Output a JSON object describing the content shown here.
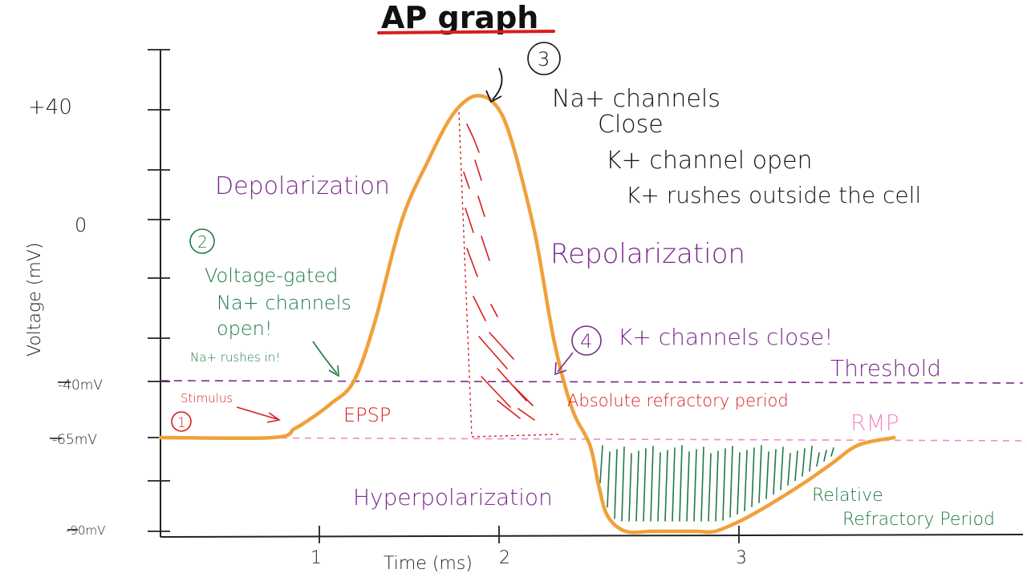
{
  "chart_data": {
    "type": "line",
    "title": "AP graph",
    "xlabel": "Time (ms)",
    "ylabel": "Voltage (mV)",
    "x_tick_labels": [
      "1",
      "2",
      "3"
    ],
    "y_tick_labels": [
      "+40",
      "0",
      "-40mV",
      "-65mV",
      "-90mV"
    ],
    "y_tick_values": [
      40,
      0,
      -40,
      -65,
      -90
    ],
    "threshold": {
      "label": "Threshold",
      "value": -40
    },
    "rmp": {
      "label": "RMP",
      "value": -65
    },
    "series": [
      {
        "x": [
          0.0,
          0.63,
          0.75,
          0.85,
          0.95,
          1.08,
          1.2,
          1.35,
          1.5,
          1.62,
          1.72,
          1.8,
          1.87,
          1.93,
          2.0,
          2.1,
          2.2,
          2.3,
          2.4,
          2.45,
          2.5,
          2.6,
          2.75,
          2.9,
          3.0,
          3.1,
          3.25,
          3.4,
          3.6,
          3.75,
          3.9,
          4.1
        ],
        "y": [
          -65,
          -65,
          -61,
          -56,
          -50,
          -40,
          -25,
          0,
          22,
          37,
          44,
          45,
          42,
          35,
          20,
          -5,
          -30,
          -52,
          -67,
          -78,
          -86,
          -93,
          -95,
          -95,
          -92,
          -90,
          -87,
          -83,
          -77,
          -72,
          -67,
          -65
        ]
      }
    ],
    "annotations": {
      "step1": "1",
      "stimulus": "Stimulus",
      "step2": "2",
      "voltage_gated": "Voltage-gated",
      "na_channels": "Na+ channels",
      "open": "open!",
      "na_rushes": "Na+ rushes in!",
      "depolarization": "Depolarization",
      "epsp": "EPSP",
      "step3": "3",
      "na_close_1": "Na+ channels",
      "na_close_2": "Close",
      "k_open": "K+ channel open",
      "k_rushes": "K+ rushes outside the cell",
      "repolarization": "Repolarization",
      "step4": "4",
      "k_close": "K+ channels close!",
      "absolute": "Absolute refractory period",
      "hyperpolarization": "Hyperpolarization",
      "relative_1": "Relative",
      "relative_2": "Refractory Period"
    },
    "colors": {
      "curve": "#f0a03c",
      "purple": "#7a2a8c",
      "green": "#1f7a45",
      "red": "#d81e1e",
      "pink": "#f08ad2",
      "axis": "#222222",
      "title_underline": "#d81e1e"
    }
  }
}
